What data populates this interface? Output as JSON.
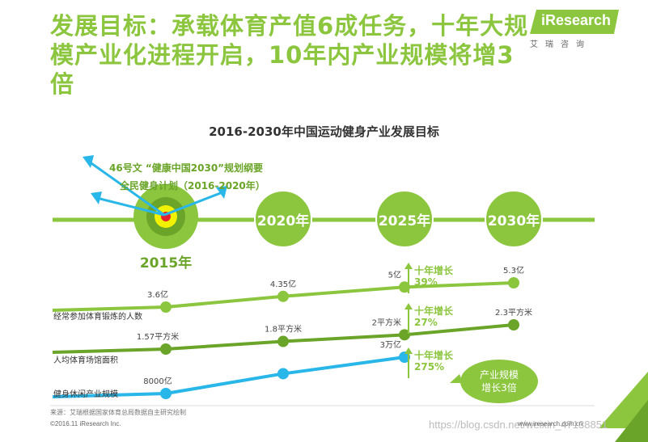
{
  "title_line1": "发展目标：承载体育产值6成任务，十年大规",
  "title_line2": "模产业化进程开启，10年内产业规模将增3倍",
  "logo": {
    "text": "iResearch",
    "sub": "艾瑞咨询"
  },
  "colors": {
    "accent": "#8cc63f",
    "dark_green": "#6aa428",
    "cyan": "#29b6e8",
    "yellow": "#f2f200",
    "red": "#e5202f"
  },
  "chart_data": {
    "type": "line",
    "title": "2016-2030年中国运动健身产业发展目标",
    "timeline": [
      "2015年",
      "2020年",
      "2025年",
      "2030年"
    ],
    "policies": [
      "46号文 “健康中国2030”规划纲要",
      "全民健身计划（2016-2020年）"
    ],
    "series": [
      {
        "name": "经常参加体育锻炼的人数",
        "unit": "亿",
        "x": [
          "2015年",
          "2020年",
          "2025年",
          "2030年"
        ],
        "values": [
          3.6,
          4.35,
          5,
          5.3
        ],
        "labels": [
          "3.6亿",
          "4.35亿",
          "5亿",
          "5.3亿"
        ],
        "growth": {
          "title": "十年增长",
          "value": "39%"
        }
      },
      {
        "name": "人均体育场馆面积",
        "unit": "平方米",
        "x": [
          "2015年",
          "2020年",
          "2025年",
          "2030年"
        ],
        "values": [
          1.57,
          1.8,
          2,
          2.3
        ],
        "labels": [
          "1.57平方米",
          "1.8平方米",
          "2平方米",
          "2.3平方米"
        ],
        "growth": {
          "title": "十年增长",
          "value": "27%"
        }
      },
      {
        "name": "健身休闲产业规模",
        "unit": "亿",
        "x": [
          "2015年",
          "2020年",
          "2025年"
        ],
        "values": [
          8000,
          20000,
          30000
        ],
        "labels": [
          "8000亿",
          "",
          "3万亿"
        ],
        "growth": {
          "title": "十年增长",
          "value": "275%"
        }
      }
    ],
    "callout": {
      "line1": "产业规模",
      "line2": "增长3倍"
    }
  },
  "footer": {
    "source": "来源：艾瑞根据国家体育总局数据自主研究绘制",
    "copyright": "©2016.11 iResearch Inc.",
    "url": "www.iresearch.com.cn",
    "watermark": "https://blog.csdn.net/weixin_47138851"
  }
}
